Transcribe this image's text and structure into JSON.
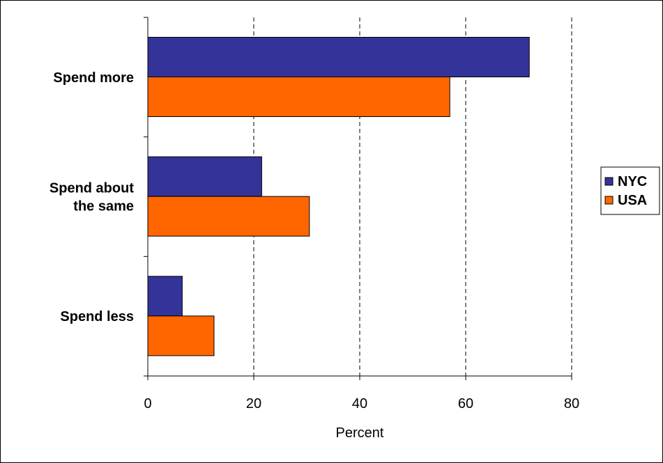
{
  "chart_data": {
    "type": "bar",
    "orientation": "horizontal",
    "categories": [
      "Spend more",
      "Spend about the same",
      "Spend less"
    ],
    "category_label_lines": [
      [
        "Spend more"
      ],
      [
        "Spend about",
        "the same"
      ],
      [
        "Spend less"
      ]
    ],
    "series": [
      {
        "name": "NYC",
        "color": "#333399",
        "values": [
          72,
          21.5,
          6.5
        ]
      },
      {
        "name": "USA",
        "color": "#FF6600",
        "values": [
          57,
          30.5,
          12.5
        ]
      }
    ],
    "xlabel": "Percent",
    "ylabel": "",
    "title": "",
    "xlim": [
      0,
      80
    ],
    "xticks": [
      0,
      20,
      40,
      60,
      80
    ],
    "xtick_labels": [
      "0",
      "20",
      "40",
      "60",
      "80"
    ],
    "grid": "vertical dashed",
    "legend_position": "right"
  }
}
